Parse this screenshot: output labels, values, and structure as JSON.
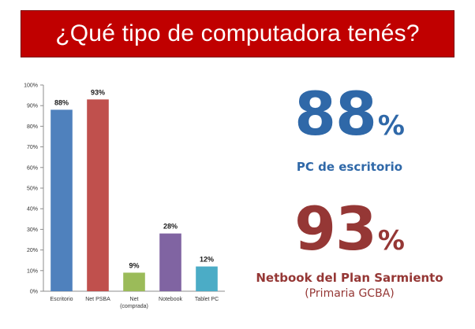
{
  "title": "¿Qué tipo de computadora tenés?",
  "chart_data": {
    "type": "bar",
    "categories": [
      "Escritorio",
      "Net PSBA",
      "Net (comprada)",
      "Notebook",
      "Tablet PC"
    ],
    "category_lines": [
      [
        "Escritorio"
      ],
      [
        "Net PSBA"
      ],
      [
        "Net",
        "(comprada)"
      ],
      [
        "Notebook"
      ],
      [
        "Tablet PC"
      ]
    ],
    "values": [
      88,
      93,
      9,
      28,
      12
    ],
    "data_labels": [
      "88%",
      "93%",
      "9%",
      "28%",
      "12%"
    ],
    "colors": [
      "#4f81bd",
      "#c0504d",
      "#9bbb59",
      "#8064a2",
      "#4bacc6"
    ],
    "ylim": [
      0,
      100
    ],
    "yticks": [
      0,
      10,
      20,
      30,
      40,
      50,
      60,
      70,
      80,
      90,
      100
    ],
    "ytick_labels": [
      "0%",
      "10%",
      "20%",
      "30%",
      "40%",
      "50%",
      "60%",
      "70%",
      "80%",
      "90%",
      "100%"
    ],
    "grid": false,
    "legend": "none"
  },
  "highlights": [
    {
      "number": "88",
      "unit": "%",
      "caption": "PC de escritorio",
      "color": "#2f68a8"
    },
    {
      "number": "93",
      "unit": "%",
      "caption": "Netbook del Plan Sarmiento",
      "subcaption": "(Primaria GCBA)",
      "color": "#953735"
    }
  ]
}
